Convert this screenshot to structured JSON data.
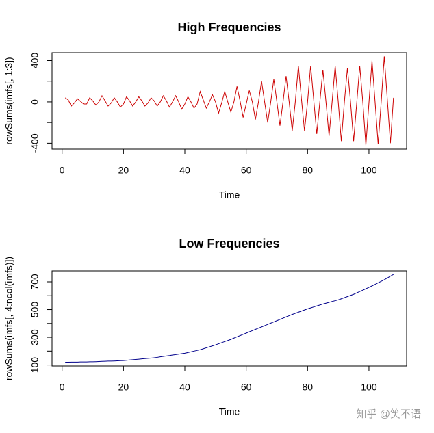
{
  "chart_data": [
    {
      "type": "line",
      "title": "High Frequencies",
      "xlabel": "Time",
      "ylabel": "rowSums(imfs[, 1:3])",
      "x": [
        1,
        2,
        3,
        4,
        5,
        6,
        7,
        8,
        9,
        10,
        11,
        12,
        13,
        14,
        15,
        16,
        17,
        18,
        19,
        20,
        21,
        22,
        23,
        24,
        25,
        26,
        27,
        28,
        29,
        30,
        31,
        32,
        33,
        34,
        35,
        36,
        37,
        38,
        39,
        40,
        41,
        42,
        43,
        44,
        45,
        46,
        47,
        48,
        49,
        50,
        51,
        52,
        53,
        54,
        55,
        56,
        57,
        58,
        59,
        60,
        61,
        62,
        63,
        64,
        65,
        66,
        67,
        68,
        69,
        70,
        71,
        72,
        73,
        74,
        75,
        76,
        77,
        78,
        79,
        80,
        81,
        82,
        83,
        84,
        85,
        86,
        87,
        88,
        89,
        90,
        91,
        92,
        93,
        94,
        95,
        96,
        97,
        98,
        99,
        100,
        101,
        102,
        103,
        104,
        105,
        106,
        107,
        108
      ],
      "series": [
        {
          "color": "#cc0000",
          "values": [
            40,
            20,
            -40,
            -10,
            30,
            5,
            -20,
            -20,
            40,
            10,
            -30,
            0,
            60,
            10,
            -40,
            -10,
            40,
            0,
            -50,
            -20,
            50,
            10,
            -40,
            0,
            50,
            10,
            -40,
            -10,
            40,
            10,
            -40,
            0,
            60,
            10,
            -50,
            0,
            60,
            0,
            -70,
            -20,
            50,
            0,
            -60,
            -20,
            100,
            20,
            -60,
            0,
            70,
            0,
            -110,
            -10,
            100,
            0,
            -100,
            0,
            150,
            10,
            -150,
            -20,
            110,
            0,
            -170,
            0,
            200,
            0,
            -200,
            0,
            220,
            0,
            -230,
            0,
            250,
            0,
            -280,
            0,
            350,
            30,
            -280,
            0,
            350,
            20,
            -310,
            0,
            310,
            0,
            -330,
            0,
            350,
            0,
            -380,
            0,
            330,
            0,
            -380,
            -20,
            350,
            0,
            -420,
            -10,
            400,
            0,
            -410,
            0,
            440,
            20,
            -400,
            40
          ]
        }
      ],
      "xlim": [
        -3.28,
        112.28
      ],
      "xticks": [
        0,
        20,
        40,
        60,
        80,
        100
      ],
      "ylim": [
        -457,
        476
      ],
      "yticks": [
        -400,
        0,
        400
      ],
      "yminorticks": [
        -200,
        200
      ]
    },
    {
      "type": "line",
      "title": "Low Frequencies",
      "xlabel": "Time",
      "ylabel": "rowSums(imfs[, 4:ncol(imfs)])",
      "x": [
        1,
        2,
        3,
        4,
        5,
        6,
        7,
        8,
        9,
        10,
        11,
        12,
        13,
        14,
        15,
        16,
        17,
        18,
        19,
        20,
        21,
        22,
        23,
        24,
        25,
        26,
        27,
        28,
        29,
        30,
        31,
        32,
        33,
        34,
        35,
        36,
        37,
        38,
        39,
        40,
        41,
        42,
        43,
        44,
        45,
        46,
        47,
        48,
        49,
        50,
        51,
        52,
        53,
        54,
        55,
        56,
        57,
        58,
        59,
        60,
        61,
        62,
        63,
        64,
        65,
        66,
        67,
        68,
        69,
        70,
        71,
        72,
        73,
        74,
        75,
        76,
        77,
        78,
        79,
        80,
        81,
        82,
        83,
        84,
        85,
        86,
        87,
        88,
        89,
        90,
        91,
        92,
        93,
        94,
        95,
        96,
        97,
        98,
        99,
        100,
        101,
        102,
        103,
        104,
        105,
        106,
        107,
        108
      ],
      "series": [
        {
          "color": "#00008b",
          "values": [
            120,
            120,
            121,
            121,
            121,
            122,
            122,
            122,
            123,
            123,
            124,
            125,
            126,
            127,
            128,
            128,
            129,
            130,
            131,
            132,
            134,
            136,
            138,
            140,
            142,
            144,
            146,
            148,
            150,
            152,
            155,
            159,
            162,
            165,
            168,
            172,
            175,
            178,
            182,
            185,
            190,
            195,
            200,
            205,
            210,
            217,
            224,
            231,
            238,
            245,
            253,
            261,
            269,
            277,
            285,
            294,
            303,
            312,
            321,
            330,
            339,
            348,
            357,
            366,
            375,
            384,
            393,
            402,
            411,
            420,
            429,
            438,
            447,
            456,
            465,
            473,
            481,
            489,
            497,
            505,
            512,
            519,
            526,
            533,
            540,
            546,
            552,
            558,
            564,
            570,
            578,
            586,
            594,
            602,
            610,
            620,
            630,
            640,
            650,
            660,
            671,
            682,
            693,
            704,
            715,
            728,
            741,
            754
          ]
        }
      ],
      "xlim": [
        -3.28,
        112.28
      ],
      "xticks": [
        0,
        20,
        40,
        60,
        80,
        100
      ],
      "ylim": [
        93,
        779
      ],
      "yticks": [
        100,
        300,
        500,
        700
      ],
      "yminorticks": [
        200,
        400,
        600
      ]
    }
  ],
  "watermark": "知乎 @笑不语"
}
